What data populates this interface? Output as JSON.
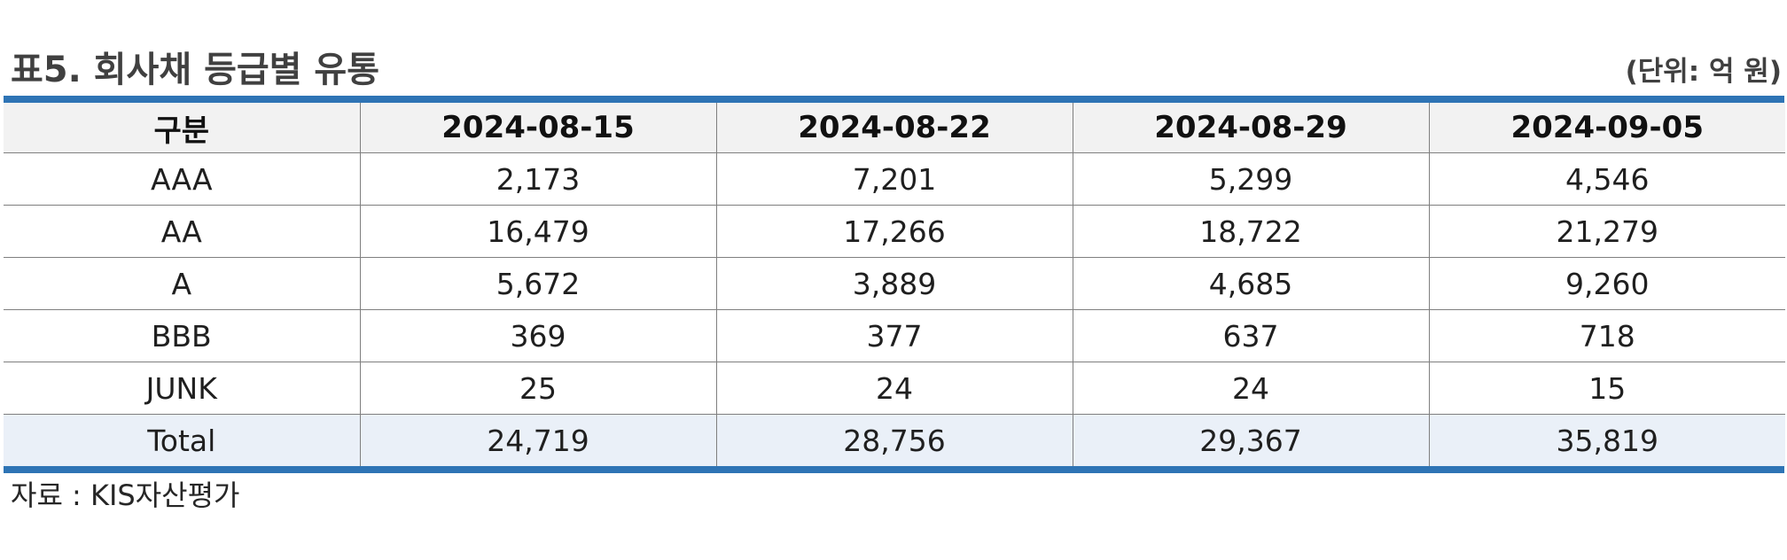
{
  "title": "표5. 회사채 등급별 유통",
  "unit": "(단위: 억 원)",
  "table": {
    "headers": [
      "구분",
      "2024-08-15",
      "2024-08-22",
      "2024-08-29",
      "2024-09-05"
    ],
    "rows": [
      [
        "AAA",
        "2,173",
        "7,201",
        "5,299",
        "4,546"
      ],
      [
        "AA",
        "16,479",
        "17,266",
        "18,722",
        "21,279"
      ],
      [
        "A",
        "5,672",
        "3,889",
        "4,685",
        "9,260"
      ],
      [
        "BBB",
        "369",
        "377",
        "637",
        "718"
      ],
      [
        "JUNK",
        "25",
        "24",
        "24",
        "15"
      ],
      [
        "Total",
        "24,719",
        "28,756",
        "29,367",
        "35,819"
      ]
    ]
  },
  "source": "자료 : KIS자산평가",
  "colors": {
    "accent_border": "#2e74b5",
    "header_bg": "#f2f2f2",
    "total_bg": "#eaf0f8"
  }
}
